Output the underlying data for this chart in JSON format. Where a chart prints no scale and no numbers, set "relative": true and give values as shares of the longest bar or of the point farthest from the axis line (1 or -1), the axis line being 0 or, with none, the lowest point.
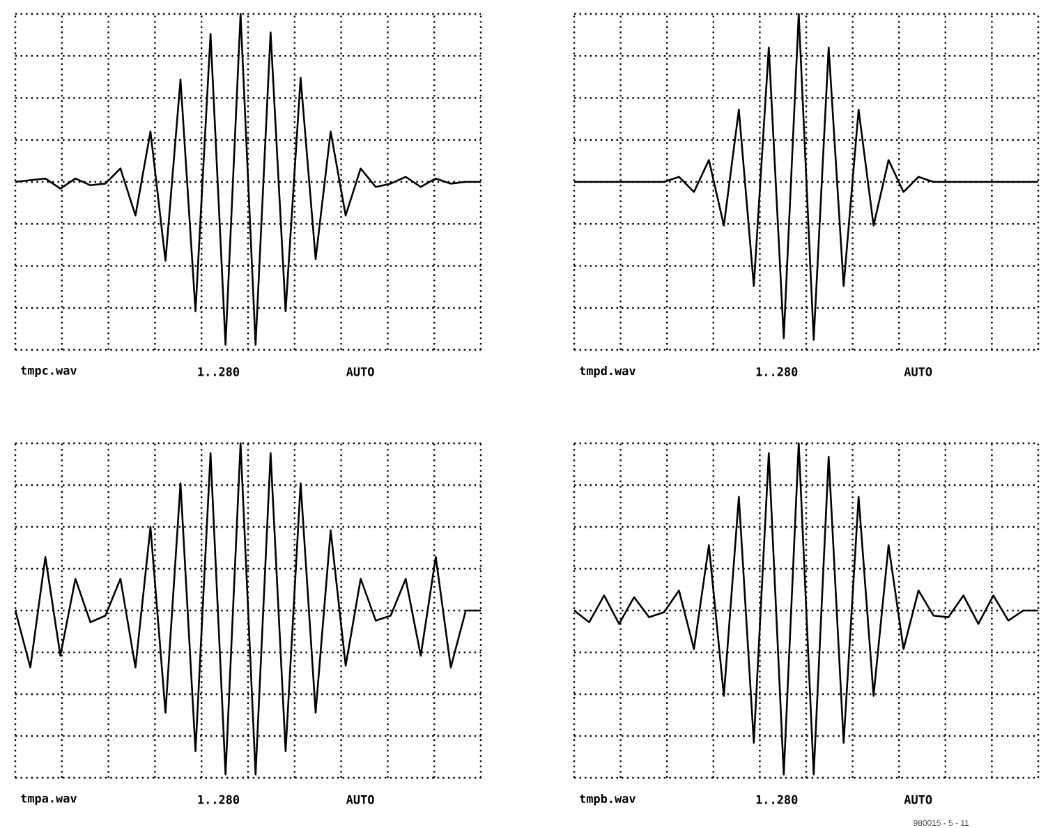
{
  "chart_data": [
    {
      "type": "line",
      "relative": true,
      "grid": true,
      "tick_labels": false,
      "categories": [
        null,
        null,
        null,
        null,
        null,
        null,
        null,
        null,
        null,
        null,
        null,
        null,
        null,
        null,
        null,
        null,
        null,
        null,
        null,
        null,
        null,
        null,
        null,
        null,
        null,
        null,
        null,
        null,
        null,
        null,
        null,
        null
      ],
      "series": [
        {
          "color": "#000000",
          "values": [
            0,
            0.01,
            0.02,
            -0.04,
            0.02,
            -0.02,
            -0.01,
            0.08,
            -0.2,
            0.3,
            -0.47,
            0.61,
            -0.77,
            0.88,
            -0.97,
            1,
            -0.97,
            0.89,
            -0.77,
            0.62,
            -0.46,
            0.3,
            -0.2,
            0.08,
            -0.03,
            -0.01,
            0.03,
            -0.03,
            0.02,
            -0.01,
            0,
            0
          ]
        }
      ],
      "annotations": [
        "tmpc.wav",
        "1..280",
        "AUTO"
      ]
    },
    {
      "type": "line",
      "relative": true,
      "grid": true,
      "tick_labels": false,
      "categories": [
        null,
        null,
        null,
        null,
        null,
        null,
        null,
        null,
        null,
        null,
        null,
        null,
        null,
        null,
        null,
        null,
        null,
        null,
        null,
        null,
        null,
        null,
        null,
        null,
        null,
        null,
        null,
        null,
        null,
        null,
        null,
        null
      ],
      "series": [
        {
          "color": "#000000",
          "values": [
            0,
            0,
            0,
            0,
            0,
            0,
            0,
            0.03,
            -0.06,
            0.13,
            -0.26,
            0.43,
            -0.62,
            0.8,
            -0.93,
            1,
            -0.94,
            0.8,
            -0.62,
            0.43,
            -0.26,
            0.13,
            -0.06,
            0.03,
            0,
            0,
            0,
            0,
            0,
            0,
            0,
            0
          ]
        }
      ],
      "annotations": [
        "tmpd.wav",
        "1..280",
        "AUTO"
      ]
    },
    {
      "type": "line",
      "relative": true,
      "grid": true,
      "tick_labels": false,
      "categories": [
        null,
        null,
        null,
        null,
        null,
        null,
        null,
        null,
        null,
        null,
        null,
        null,
        null,
        null,
        null,
        null,
        null,
        null,
        null,
        null,
        null,
        null,
        null,
        null,
        null,
        null,
        null,
        null,
        null,
        null,
        null,
        null
      ],
      "series": [
        {
          "color": "#000000",
          "values": [
            0,
            -0.34,
            0.32,
            -0.27,
            0.19,
            -0.07,
            -0.03,
            0.19,
            -0.34,
            0.5,
            -0.61,
            0.76,
            -0.84,
            0.94,
            -0.98,
            1,
            -0.98,
            0.94,
            -0.84,
            0.76,
            -0.61,
            0.48,
            -0.33,
            0.19,
            -0.06,
            -0.03,
            0.19,
            -0.27,
            0.32,
            -0.34,
            0,
            0
          ]
        }
      ],
      "annotations": [
        "tmpa.wav",
        "1..280",
        "AUTO"
      ]
    },
    {
      "type": "line",
      "relative": true,
      "grid": true,
      "tick_labels": false,
      "categories": [
        null,
        null,
        null,
        null,
        null,
        null,
        null,
        null,
        null,
        null,
        null,
        null,
        null,
        null,
        null,
        null,
        null,
        null,
        null,
        null,
        null,
        null,
        null,
        null,
        null,
        null,
        null,
        null,
        null,
        null,
        null,
        null
      ],
      "series": [
        {
          "color": "#000000",
          "values": [
            0,
            -0.07,
            0.09,
            -0.08,
            0.08,
            -0.04,
            -0.01,
            0.12,
            -0.23,
            0.39,
            -0.51,
            0.68,
            -0.79,
            0.94,
            -0.98,
            1,
            -0.98,
            0.92,
            -0.79,
            0.68,
            -0.51,
            0.39,
            -0.23,
            0.12,
            -0.03,
            -0.04,
            0.09,
            -0.08,
            0.09,
            -0.06,
            0,
            0
          ]
        }
      ],
      "annotations": [
        "tmpb.wav",
        "1..280",
        "AUTO",
        "980015 - 5 - 11"
      ]
    }
  ]
}
